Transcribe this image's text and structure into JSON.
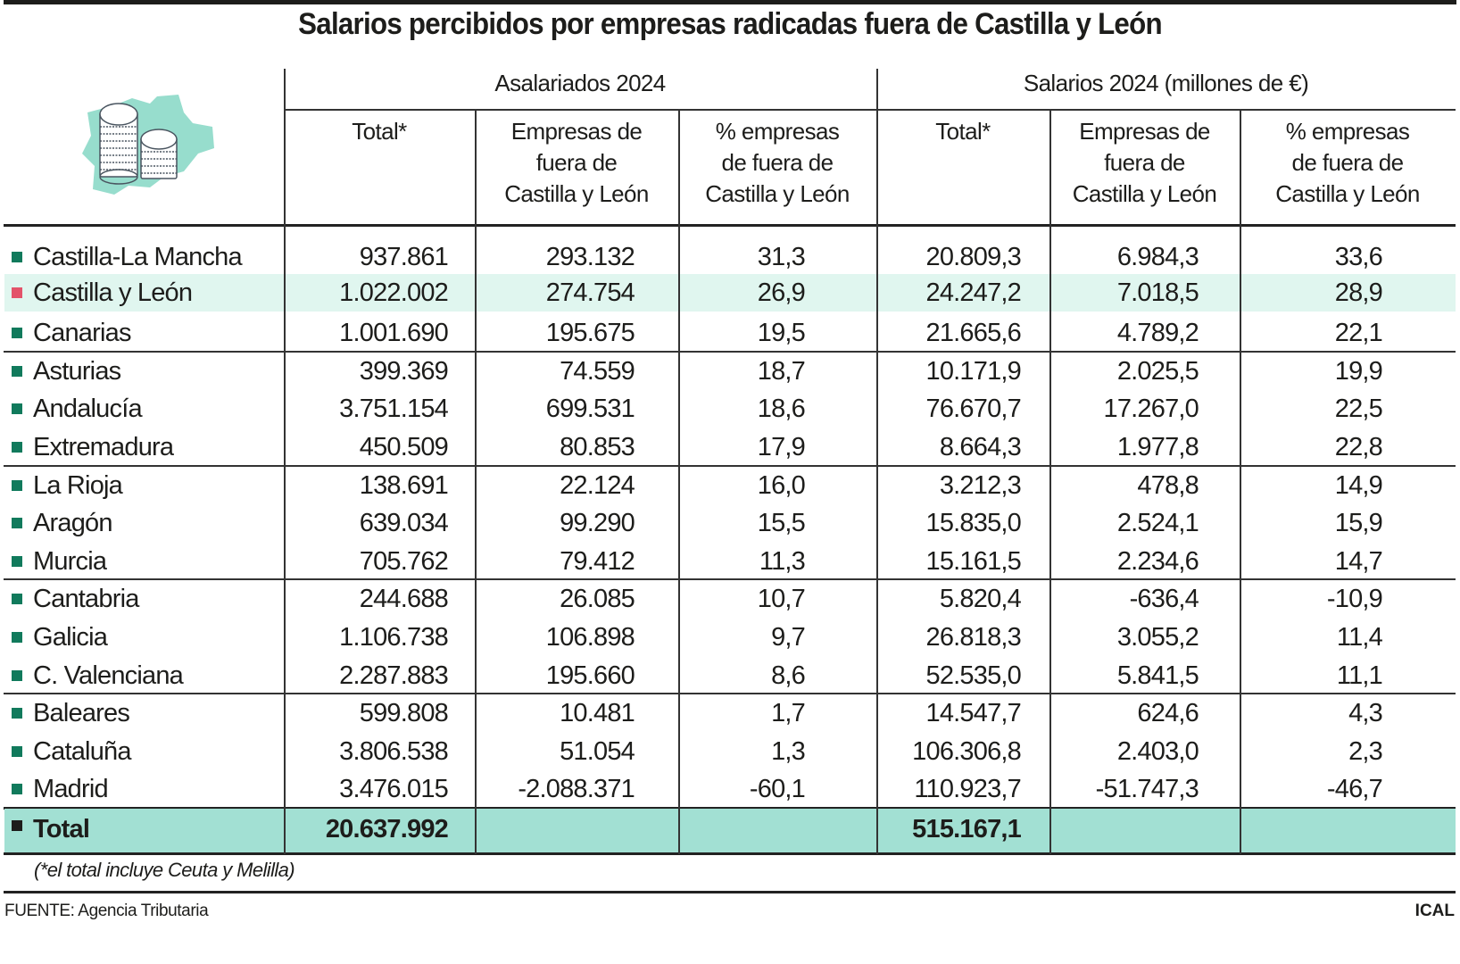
{
  "title": "Salarios percibidos por empresas radicadas fuera de Castilla y León",
  "icon": "coins-on-castilla-y-leon-map-icon",
  "colors": {
    "region_marker": "#117a5c",
    "highlight_marker": "#e3536a",
    "highlight_row": "#e0f6ef",
    "total_row": "#a2e0d3"
  },
  "chart_data": {
    "type": "table",
    "title": "Salarios percibidos por empresas radicadas fuera de Castilla y León",
    "column_groups": [
      "Asalariados 2024",
      "Salarios 2024 (millones de €)"
    ],
    "columns": [
      "Total*",
      "Empresas de fuera de Castilla y León",
      "% empresas de fuera de Castilla y León",
      "Total*",
      "Empresas de fuera de Castilla y León",
      "% empresas de fuera de Castilla y León"
    ],
    "column_lines": [
      [
        "Total*"
      ],
      [
        "Empresas de",
        "fuera de",
        "Castilla y León"
      ],
      [
        "% empresas",
        "de fuera de",
        "Castilla y León"
      ],
      [
        "Total*"
      ],
      [
        "Empresas de",
        "fuera de",
        "Castilla y León"
      ],
      [
        "% empresas",
        "de fuera de",
        "Castilla y León"
      ]
    ],
    "rows": [
      {
        "region": "Castilla-La Mancha",
        "values": [
          "937.861",
          "293.132",
          "31,3",
          "20.809,3",
          "6.984,3",
          "33,6"
        ]
      },
      {
        "region": "Castilla y León",
        "highlight": true,
        "values": [
          "1.022.002",
          "274.754",
          "26,9",
          "24.247,2",
          "7.018,5",
          "28,9"
        ]
      },
      {
        "region": "Canarias",
        "values": [
          "1.001.690",
          "195.675",
          "19,5",
          "21.665,6",
          "4.789,2",
          "22,1"
        ]
      },
      {
        "region": "Asturias",
        "values": [
          "399.369",
          "74.559",
          "18,7",
          "10.171,9",
          "2.025,5",
          "19,9"
        ]
      },
      {
        "region": "Andalucía",
        "values": [
          "3.751.154",
          "699.531",
          "18,6",
          "76.670,7",
          "17.267,0",
          "22,5"
        ]
      },
      {
        "region": "Extremadura",
        "values": [
          "450.509",
          "80.853",
          "17,9",
          "8.664,3",
          "1.977,8",
          "22,8"
        ]
      },
      {
        "region": "La Rioja",
        "values": [
          "138.691",
          "22.124",
          "16,0",
          "3.212,3",
          "478,8",
          "14,9"
        ]
      },
      {
        "region": "Aragón",
        "values": [
          "639.034",
          "99.290",
          "15,5",
          "15.835,0",
          "2.524,1",
          "15,9"
        ]
      },
      {
        "region": "Murcia",
        "values": [
          "705.762",
          "79.412",
          "11,3",
          "15.161,5",
          "2.234,6",
          "14,7"
        ]
      },
      {
        "region": "Cantabria",
        "values": [
          "244.688",
          "26.085",
          "10,7",
          "5.820,4",
          "-636,4",
          "-10,9"
        ]
      },
      {
        "region": "Galicia",
        "values": [
          "1.106.738",
          "106.898",
          "9,7",
          "26.818,3",
          "3.055,2",
          "11,4"
        ]
      },
      {
        "region": "C. Valenciana",
        "values": [
          "2.287.883",
          "195.660",
          "8,6",
          "52.535,0",
          "5.841,5",
          "11,1"
        ]
      },
      {
        "region": "Baleares",
        "values": [
          "599.808",
          "10.481",
          "1,7",
          "14.547,7",
          "624,6",
          "4,3"
        ]
      },
      {
        "region": "Cataluña",
        "values": [
          "3.806.538",
          "51.054",
          "1,3",
          "106.306,8",
          "2.403,0",
          "2,3"
        ]
      },
      {
        "region": "Madrid",
        "values": [
          "3.476.015",
          "-2.088.371",
          "-60,1",
          "110.923,7",
          "-51.747,3",
          "-46,7"
        ]
      }
    ],
    "total": {
      "region": "Total",
      "values": [
        "20.637.992",
        "",
        "",
        "515.167,1",
        "",
        ""
      ]
    }
  },
  "footnote": "(*el total incluye Ceuta y Melilla)",
  "source": "FUENTE: Agencia Tributaria",
  "brand": "ICAL"
}
